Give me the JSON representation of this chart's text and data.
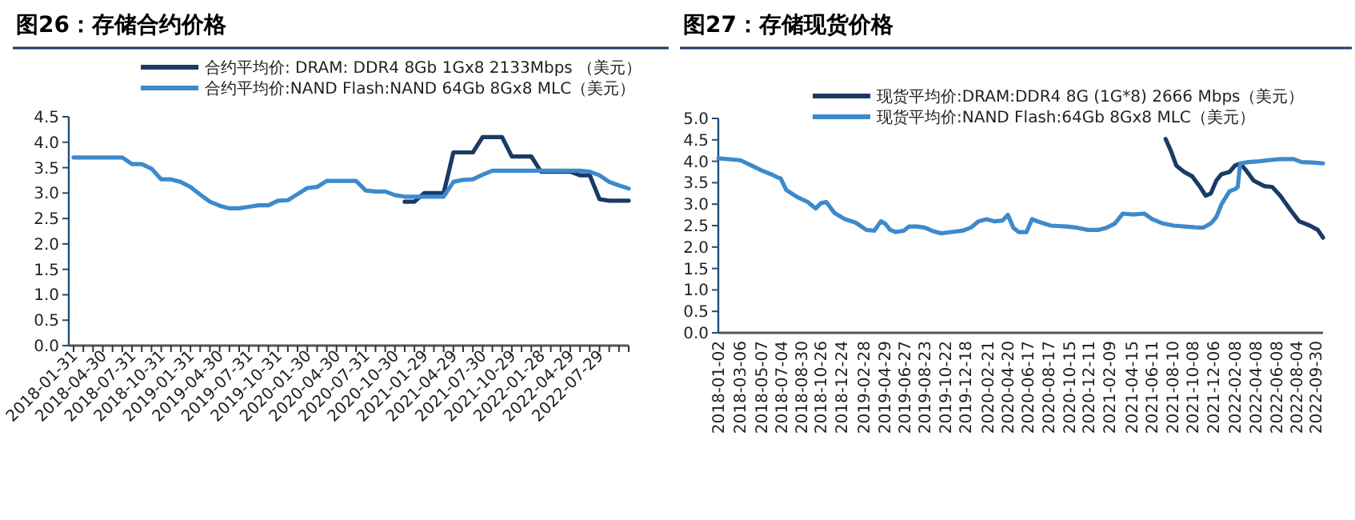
{
  "chart_data": [
    {
      "type": "line",
      "title": "图26：存储合约价格",
      "legend": "top",
      "marker": "none",
      "line_style": "solid",
      "grid": false,
      "categories": [
        "2018-01-31",
        null,
        null,
        "2018-04-30",
        null,
        null,
        "2018-07-31",
        null,
        null,
        "2018-10-31",
        null,
        null,
        "2019-01-31",
        null,
        null,
        "2019-04-30",
        null,
        null,
        "2019-07-31",
        null,
        null,
        "2019-10-31",
        null,
        null,
        "2020-01-30",
        null,
        null,
        "2020-04-30",
        null,
        null,
        "2020-07-31",
        null,
        null,
        "2020-10-30",
        null,
        null,
        "2021-01-29",
        null,
        null,
        "2021-04-29",
        null,
        null,
        "2021-07-30",
        null,
        null,
        "2021-10-29",
        null,
        null,
        "2022-01-28",
        null,
        null,
        "2022-04-29",
        null,
        null,
        "2022-07-29",
        null,
        null,
        null
      ],
      "ylim": [
        0,
        4.5
      ],
      "yticks": [
        {
          "value": 0,
          "label": "0.0"
        },
        {
          "value": 0.5,
          "label": "0.5"
        },
        {
          "value": 1,
          "label": "1.0"
        },
        {
          "value": 1.5,
          "label": "1.5"
        },
        {
          "value": 2,
          "label": "2.0"
        },
        {
          "value": 2.5,
          "label": "2.5"
        },
        {
          "value": 3,
          "label": "3.0"
        },
        {
          "value": 3.5,
          "label": "3.5"
        },
        {
          "value": 4,
          "label": "4.0"
        },
        {
          "value": 4.5,
          "label": "4.5"
        }
      ],
      "series": [
        {
          "name": "合约平均价: DRAM: DDR4 8Gb 1Gx8 2133Mbps （美元）",
          "color": "#1b3a66",
          "values": [
            null,
            null,
            null,
            null,
            null,
            null,
            null,
            null,
            null,
            null,
            null,
            null,
            null,
            null,
            null,
            null,
            null,
            null,
            null,
            null,
            null,
            null,
            null,
            null,
            null,
            null,
            null,
            null,
            null,
            null,
            null,
            null,
            null,
            null,
            2.83,
            2.83,
            3.0,
            3.0,
            3.0,
            3.8,
            3.8,
            3.8,
            4.1,
            4.1,
            4.1,
            3.72,
            3.72,
            3.72,
            3.42,
            3.42,
            3.42,
            3.42,
            3.35,
            3.35,
            2.88,
            2.85,
            2.85,
            2.85
          ]
        },
        {
          "name": "合约平均价:NAND Flash:NAND 64Gb 8Gx8 MLC（美元）",
          "color": "#3d8acb",
          "values": [
            3.7,
            3.7,
            3.7,
            3.7,
            3.7,
            3.7,
            3.57,
            3.57,
            3.48,
            3.27,
            3.27,
            3.22,
            3.12,
            2.97,
            2.83,
            2.75,
            2.7,
            2.7,
            2.73,
            2.76,
            2.76,
            2.85,
            2.86,
            2.98,
            3.1,
            3.12,
            3.24,
            3.24,
            3.24,
            3.24,
            3.05,
            3.03,
            3.03,
            2.96,
            2.93,
            2.93,
            2.93,
            2.93,
            2.93,
            3.22,
            3.26,
            3.27,
            3.36,
            3.44,
            3.44,
            3.44,
            3.44,
            3.44,
            3.44,
            3.44,
            3.44,
            3.44,
            3.44,
            3.42,
            3.35,
            3.22,
            3.15,
            3.09
          ]
        }
      ]
    },
    {
      "type": "line",
      "title": "图27：存储现货价格",
      "legend": "top",
      "marker": "none",
      "line_style": "solid",
      "grid": false,
      "xlim": [
        "2018-01-02",
        "2022-10-20"
      ],
      "xticks": [
        "2018-01-02",
        "2018-03-06",
        "2018-05-07",
        "2018-07-04",
        "2018-08-30",
        "2018-10-26",
        "2018-12-24",
        "2019-02-28",
        "2019-04-29",
        "2019-06-27",
        "2019-08-23",
        "2019-10-22",
        "2019-12-18",
        "2020-02-21",
        "2020-04-20",
        "2020-06-17",
        "2020-08-17",
        "2020-10-15",
        "2020-12-11",
        "2021-02-09",
        "2021-04-15",
        "2021-06-11",
        "2021-08-10",
        "2021-10-08",
        "2021-12-06",
        "2022-02-08",
        "2022-04-08",
        "2022-06-08",
        "2022-08-04",
        "2022-09-30"
      ],
      "ylim": [
        0,
        5
      ],
      "yticks": [
        {
          "value": 0,
          "label": "0.0"
        },
        {
          "value": 0.5,
          "label": "0.5"
        },
        {
          "value": 1,
          "label": "1.0"
        },
        {
          "value": 1.5,
          "label": "1.5"
        },
        {
          "value": 2,
          "label": "2.0"
        },
        {
          "value": 2.5,
          "label": "2.5"
        },
        {
          "value": 3,
          "label": "3.0"
        },
        {
          "value": 3.5,
          "label": "3.5"
        },
        {
          "value": 4,
          "label": "4.0"
        },
        {
          "value": 4.5,
          "label": "4.5"
        },
        {
          "value": 5,
          "label": "5.0"
        }
      ],
      "series": [
        {
          "name": "现货平均价:DRAM:DDR4 8G (1G*8) 2666 Mbps（美元）",
          "color": "#1b3a66",
          "x": [
            "2021-07-21",
            "2021-08-05",
            "2021-08-21",
            "2021-09-13",
            "2021-10-06",
            "2021-10-29",
            "2021-11-14",
            "2021-11-29",
            "2021-12-15",
            "2021-12-30",
            "2022-01-22",
            "2022-02-07",
            "2022-02-22",
            "2022-03-10",
            "2022-04-02",
            "2022-05-03",
            "2022-05-26",
            "2022-06-18",
            "2022-07-19",
            "2022-08-12",
            "2022-09-12",
            "2022-10-05",
            "2022-10-20"
          ],
          "values": [
            4.52,
            4.25,
            3.9,
            3.75,
            3.65,
            3.4,
            3.2,
            3.25,
            3.55,
            3.7,
            3.75,
            3.9,
            3.95,
            3.8,
            3.55,
            3.42,
            3.4,
            3.2,
            2.85,
            2.6,
            2.5,
            2.4,
            2.22
          ]
        },
        {
          "name": "现货平均价:NAND Flash:64Gb 8Gx8 MLC（美元）",
          "color": "#3d8acb",
          "x": [
            "2018-01-02",
            "2018-02-28",
            "2018-03-08",
            "2018-04-08",
            "2018-05-09",
            "2018-06-09",
            "2018-06-24",
            "2018-07-02",
            "2018-07-18",
            "2018-08-18",
            "2018-09-18",
            "2018-10-11",
            "2018-10-26",
            "2018-11-11",
            "2018-12-04",
            "2019-01-04",
            "2019-02-04",
            "2019-03-07",
            "2019-03-30",
            "2019-04-18",
            "2019-04-30",
            "2019-05-15",
            "2019-05-31",
            "2019-06-23",
            "2019-07-09",
            "2019-08-01",
            "2019-08-24",
            "2019-09-16",
            "2019-10-10",
            "2019-11-09",
            "2019-12-10",
            "2020-01-03",
            "2020-01-26",
            "2020-02-18",
            "2020-03-12",
            "2020-04-05",
            "2020-04-20",
            "2020-05-06",
            "2020-05-21",
            "2020-06-13",
            "2020-06-29",
            "2020-07-22",
            "2020-08-22",
            "2020-10-07",
            "2020-11-07",
            "2020-12-08",
            "2021-01-08",
            "2021-01-31",
            "2021-02-24",
            "2021-03-19",
            "2021-04-19",
            "2021-05-20",
            "2021-06-12",
            "2021-07-13",
            "2021-08-13",
            "2021-09-13",
            "2021-10-14",
            "2021-11-06",
            "2021-11-29",
            "2021-12-15",
            "2021-12-30",
            "2022-01-22",
            "2022-02-07",
            "2022-02-15",
            "2022-02-22",
            "2022-03-18",
            "2022-04-18",
            "2022-05-19",
            "2022-06-18",
            "2022-07-27",
            "2022-08-19",
            "2022-09-19",
            "2022-10-20"
          ],
          "values": [
            4.07,
            4.03,
            4.02,
            3.9,
            3.78,
            3.68,
            3.62,
            3.6,
            3.33,
            3.17,
            3.05,
            2.9,
            3.02,
            3.05,
            2.8,
            2.65,
            2.57,
            2.4,
            2.38,
            2.6,
            2.55,
            2.4,
            2.35,
            2.38,
            2.48,
            2.48,
            2.45,
            2.37,
            2.32,
            2.35,
            2.38,
            2.45,
            2.6,
            2.65,
            2.6,
            2.62,
            2.75,
            2.45,
            2.35,
            2.35,
            2.65,
            2.58,
            2.5,
            2.48,
            2.45,
            2.4,
            2.4,
            2.45,
            2.55,
            2.78,
            2.76,
            2.78,
            2.65,
            2.55,
            2.5,
            2.48,
            2.46,
            2.45,
            2.55,
            2.7,
            3.0,
            3.3,
            3.35,
            3.4,
            3.95,
            3.98,
            4.0,
            4.03,
            4.05,
            4.05,
            3.98,
            3.97,
            3.95
          ]
        }
      ]
    }
  ]
}
